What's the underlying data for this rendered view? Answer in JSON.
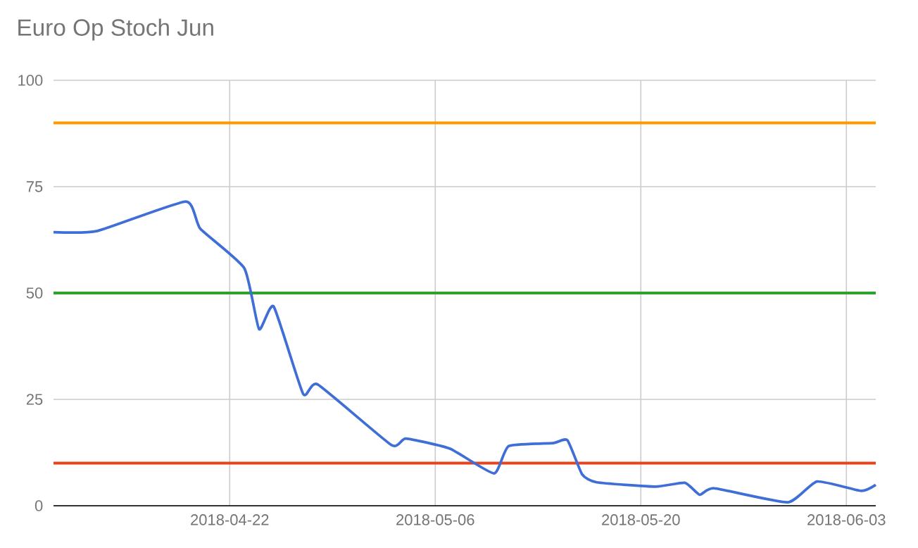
{
  "chart_data": {
    "type": "line",
    "title": "Euro Op Stoch Jun",
    "x": [
      "2018-04-10",
      "2018-04-13",
      "2018-04-19",
      "2018-04-20",
      "2018-04-23",
      "2018-04-24",
      "2018-04-25",
      "2018-04-27",
      "2018-04-28",
      "2018-05-03",
      "2018-05-04",
      "2018-05-07",
      "2018-05-10",
      "2018-05-11",
      "2018-05-14",
      "2018-05-15",
      "2018-05-16",
      "2018-05-17",
      "2018-05-21",
      "2018-05-23",
      "2018-05-24",
      "2018-05-25",
      "2018-05-30",
      "2018-06-01",
      "2018-06-04",
      "2018-06-05"
    ],
    "series": [
      {
        "color": "#3f6fd6",
        "values": [
          64.3,
          64.6,
          71.5,
          65.1,
          55.8,
          41.5,
          46.8,
          26.3,
          28.5,
          14.3,
          15.8,
          13.4,
          7.6,
          14.0,
          14.7,
          15.4,
          7.4,
          5.5,
          4.5,
          5.4,
          2.6,
          4.1,
          0.8,
          5.7,
          3.5,
          4.9
        ]
      }
    ],
    "xlim": [
      "2018-04-10",
      "2018-06-05"
    ],
    "xticks": [
      "2018-04-22",
      "2018-05-06",
      "2018-05-20",
      "2018-06-03"
    ],
    "ylim": [
      0,
      100
    ],
    "yticks": [
      0,
      25,
      50,
      75,
      100
    ],
    "ref_lines": [
      {
        "axis": "y",
        "value": 90,
        "color": "#ff9900"
      },
      {
        "axis": "y",
        "value": 50,
        "color": "#2ea02c"
      },
      {
        "axis": "y",
        "value": 10,
        "color": "#e8431f"
      }
    ],
    "grid": true,
    "marker": "none",
    "line_style": "solid"
  }
}
